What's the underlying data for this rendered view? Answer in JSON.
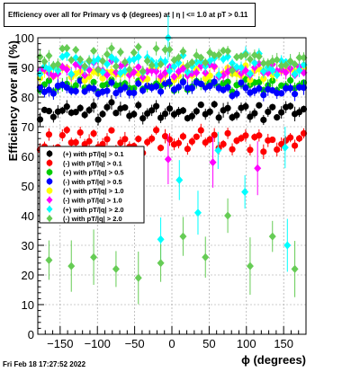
{
  "title": "Efficiency over all for Primary vs ϕ (degrees) at |  η | <= 1.0 at pT > 0.11",
  "timestamp": "Fri Feb 18 17:27:52 2022",
  "chart_data": {
    "type": "scatter",
    "xlabel": "ϕ (degrees)",
    "ylabel": "Efficiency over all (%)",
    "xlim": [
      -180,
      180
    ],
    "ylim": [
      0,
      100
    ],
    "xticks": [
      -150,
      -100,
      -50,
      0,
      50,
      100,
      150
    ],
    "yticks": [
      0,
      10,
      20,
      30,
      40,
      50,
      60,
      70,
      80,
      90,
      100
    ],
    "grid": true,
    "legend_position": "left-middle",
    "series": [
      {
        "name": "(+) with pT/|q| > 0.1",
        "color": "#000000",
        "marker": "circle",
        "base": 75,
        "amp": 2.5,
        "jitter": 1.0,
        "points": 60
      },
      {
        "name": "(-) with pT/|q| > 0.1",
        "color": "#ff0000",
        "marker": "circle",
        "base": 65,
        "amp": 3,
        "jitter": 1.5,
        "points": 60
      },
      {
        "name": "(+) with pT/|q| > 0.5",
        "color": "#00cc00",
        "marker": "circle",
        "base": 84,
        "amp": 1.5,
        "jitter": 1.0,
        "points": 60
      },
      {
        "name": "(-) with pT/|q| > 0.5",
        "color": "#0000ff",
        "marker": "circle",
        "base": 83,
        "amp": 1.5,
        "jitter": 1.5,
        "points": 60
      },
      {
        "name": "(+) with pT/|q| > 1.0",
        "color": "#ffff00",
        "marker": "circle",
        "base": 88,
        "amp": 1.5,
        "jitter": 1.5,
        "points": 60
      },
      {
        "name": "(-) with pT/|q| > 1.0",
        "color": "#ff00ff",
        "marker": "diamond",
        "base": 89,
        "amp": 1.5,
        "jitter": 2.0,
        "points": 60,
        "outliers": [
          [
            -5,
            59
          ],
          [
            55,
            58
          ],
          [
            115,
            56
          ]
        ]
      },
      {
        "name": "(+) with pT/|q| > 2.0",
        "color": "#00ffff",
        "marker": "diamond",
        "base": 91,
        "amp": 1.0,
        "jitter": 3.0,
        "points": 60,
        "outliers": [
          [
            -15,
            32
          ],
          [
            -5,
            100
          ],
          [
            10,
            52
          ],
          [
            35,
            41
          ],
          [
            62,
            62
          ],
          [
            98,
            48
          ],
          [
            152,
            63
          ],
          [
            155,
            30
          ]
        ]
      },
      {
        "name": "(-) with pT/|q| > 2.0",
        "color": "#66cc55",
        "marker": "diamond",
        "base": 93,
        "amp": 2.0,
        "jitter": 3.0,
        "points": 60,
        "outliers": [
          [
            -165,
            25
          ],
          [
            -135,
            23
          ],
          [
            -105,
            26
          ],
          [
            -75,
            22
          ],
          [
            -45,
            19
          ],
          [
            -15,
            24
          ],
          [
            15,
            33
          ],
          [
            45,
            26
          ],
          [
            75,
            40
          ],
          [
            105,
            23
          ],
          [
            135,
            33
          ],
          [
            165,
            22
          ]
        ]
      }
    ]
  }
}
